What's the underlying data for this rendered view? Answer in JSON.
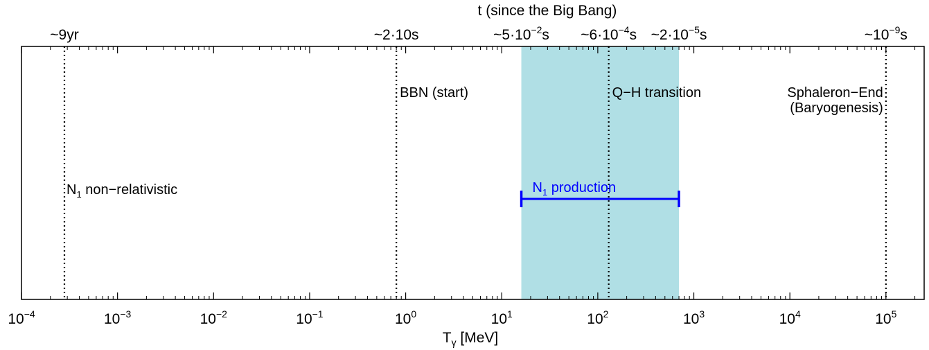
{
  "chart_data": {
    "type": "timeline",
    "title": "t (since the Big Bang)",
    "xlabel": "T",
    "xlabel_sub": "γ",
    "xlabel_unit": " [MeV]",
    "xscale": "log",
    "xlim": [
      0.0001,
      250000
    ],
    "x_ticks": [
      {
        "value": 0.0001,
        "base": "10",
        "exp": "−4"
      },
      {
        "value": 0.001,
        "base": "10",
        "exp": "−3"
      },
      {
        "value": 0.01,
        "base": "10",
        "exp": "−2"
      },
      {
        "value": 0.1,
        "base": "10",
        "exp": "−1"
      },
      {
        "value": 1,
        "base": "10",
        "exp": "0"
      },
      {
        "value": 10,
        "base": "10",
        "exp": "1"
      },
      {
        "value": 100,
        "base": "10",
        "exp": "2"
      },
      {
        "value": 1000,
        "base": "10",
        "exp": "3"
      },
      {
        "value": 10000,
        "base": "10",
        "exp": "4"
      },
      {
        "value": 100000,
        "base": "10",
        "exp": "5"
      }
    ],
    "time_ticks": [
      {
        "value": 0.00028,
        "parts": [
          {
            "t": "~9yr"
          }
        ]
      },
      {
        "value": 0.8,
        "parts": [
          {
            "t": "~2·10s"
          }
        ]
      },
      {
        "value": 16,
        "parts": [
          {
            "t": "~5·10"
          },
          {
            "t": "−2",
            "sup": true
          },
          {
            "t": "s"
          }
        ]
      },
      {
        "value": 130,
        "parts": [
          {
            "t": "~6·10"
          },
          {
            "t": "−4",
            "sup": true
          },
          {
            "t": "s"
          }
        ]
      },
      {
        "value": 700,
        "parts": [
          {
            "t": "~2·10"
          },
          {
            "t": "−5",
            "sup": true
          },
          {
            "t": "s"
          }
        ]
      },
      {
        "value": 100000,
        "parts": [
          {
            "t": "~10"
          },
          {
            "t": "−9",
            "sup": true
          },
          {
            "t": "s"
          }
        ]
      }
    ],
    "vlines": [
      {
        "value": 0.00028,
        "label": []
      },
      {
        "value": 0.8,
        "label": [
          "BBN (start)"
        ]
      },
      {
        "value": 130,
        "label": [
          "Q−H transition"
        ]
      },
      {
        "value": 100000,
        "label": [
          "Sphaleron−End",
          "(Baryogenesis)"
        ]
      }
    ],
    "shaded_region": {
      "from": 16,
      "to": 700,
      "color": "#b0dfe5"
    },
    "production_bar": {
      "from": 16,
      "to": 700,
      "label": "N",
      "label_sub": "1",
      "label_rest": " production",
      "color": "#0000ff"
    },
    "nonrel_label": {
      "text": "N",
      "sub": "1",
      "rest": " non−relativistic",
      "color": "#0000ff"
    },
    "grid": false
  }
}
